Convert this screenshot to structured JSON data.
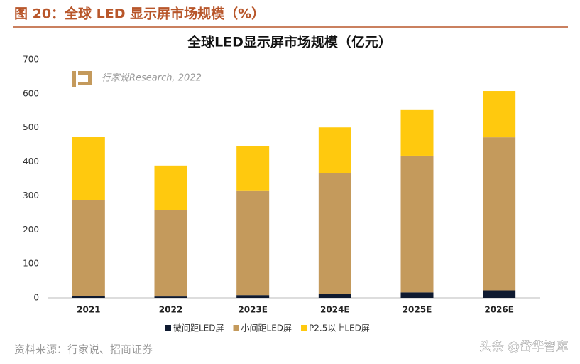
{
  "header": "图 20：全球 LED 显示屏市场规模（%）",
  "source": "资料来源：行家说、招商证券",
  "watermark": "头条 @岱华智库",
  "chart_data": {
    "type": "stacked_bar",
    "title": "全球LED显示屏市场规模（亿元）",
    "annotation": "行家说Research, 2022",
    "categories": [
      "2021",
      "2022",
      "2023E",
      "2024E",
      "2025E",
      "2026E"
    ],
    "series": [
      {
        "name": "微间距LED屏",
        "color": "#0f1a30",
        "values": [
          5,
          4,
          8,
          12,
          16,
          22
        ]
      },
      {
        "name": "小间距LED屏",
        "color": "#c49a5c",
        "values": [
          283,
          255,
          308,
          354,
          402,
          450
        ]
      },
      {
        "name": "P2.5以上LED屏",
        "color": "#ffc90e",
        "values": [
          186,
          130,
          131,
          135,
          134,
          136
        ]
      }
    ],
    "ylim": [
      0,
      700
    ],
    "yticks": [
      0,
      100,
      200,
      300,
      400,
      500,
      600,
      700
    ],
    "grid": false,
    "legend": "bottom"
  }
}
